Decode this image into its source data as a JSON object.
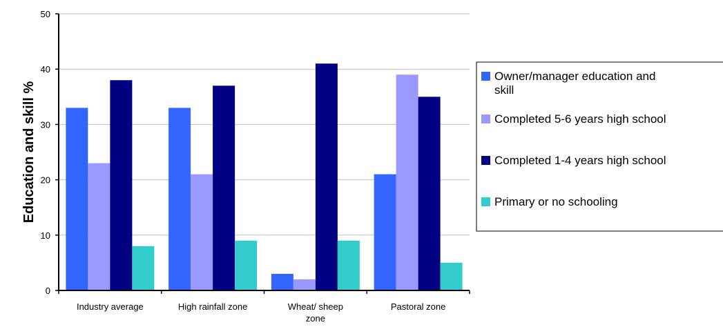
{
  "chart_data": {
    "type": "bar",
    "title": "",
    "xlabel": "",
    "ylabel": "Education and skill %",
    "ylim": [
      0,
      50
    ],
    "yticks": [
      0,
      10,
      20,
      30,
      40,
      50
    ],
    "grid": true,
    "legend_position": "right",
    "categories": [
      [
        "Industry average"
      ],
      [
        "High rainfall zone"
      ],
      [
        "Wheat/ sheep",
        "zone"
      ],
      [
        "Pastoral zone"
      ]
    ],
    "series": [
      {
        "name": [
          "Owner/manager education and",
          "skill"
        ],
        "color": "#3366FF",
        "values": [
          33,
          33,
          3,
          21
        ]
      },
      {
        "name": [
          "Completed 5-6 years high school"
        ],
        "color": "#9999FF",
        "values": [
          23,
          21,
          2,
          39
        ]
      },
      {
        "name": [
          "Completed 1-4 years high school"
        ],
        "color": "#000080",
        "values": [
          38,
          37,
          41,
          35
        ]
      },
      {
        "name": [
          "Primary or no schooling"
        ],
        "color": "#33CCCC",
        "values": [
          8,
          9,
          9,
          5
        ]
      }
    ]
  }
}
